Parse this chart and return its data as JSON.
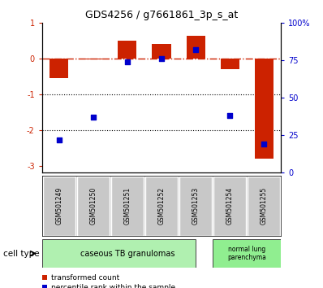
{
  "title": "GDS4256 / g7661861_3p_s_at",
  "samples": [
    "GSM501249",
    "GSM501250",
    "GSM501251",
    "GSM501252",
    "GSM501253",
    "GSM501254",
    "GSM501255"
  ],
  "red_values": [
    -0.55,
    -0.02,
    0.5,
    0.42,
    0.65,
    -0.3,
    -2.8
  ],
  "blue_pct": [
    22,
    37,
    74,
    76,
    82,
    38,
    19
  ],
  "ylim_left": [
    -3.2,
    1.0
  ],
  "ylim_right": [
    0,
    100
  ],
  "yticks_left": [
    1,
    0,
    -1,
    -2,
    -3
  ],
  "yticks_right": [
    100,
    75,
    50,
    25,
    0
  ],
  "ytick_labels_left": [
    "1",
    "0",
    "-1",
    "-2",
    "-3"
  ],
  "ytick_labels_right": [
    "100%",
    "75",
    "50",
    "25",
    "0"
  ],
  "hlines": [
    -1.0,
    -2.0
  ],
  "dashed_hline": 0.0,
  "cell_type_labels": [
    "caseous TB granulomas",
    "normal lung\nparenchyma"
  ],
  "bar_color": "#cc2200",
  "dot_color": "#0000cc",
  "bar_width": 0.55,
  "legend_red": "transformed count",
  "legend_blue": "percentile rank within the sample",
  "cell_type_text": "cell type",
  "background_color": "#ffffff",
  "sample_bg": "#c8c8c8",
  "cell_cas_color": "#b0f0b0",
  "cell_norm_color": "#90ee90"
}
